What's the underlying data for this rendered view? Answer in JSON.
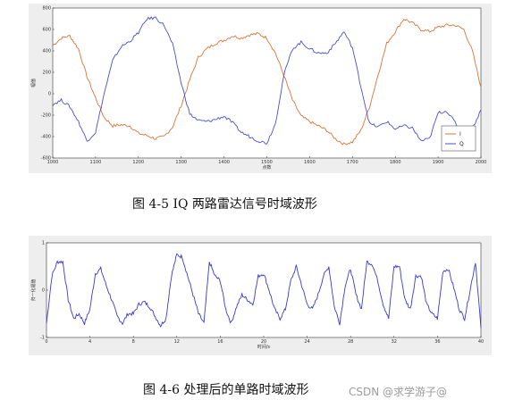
{
  "figure1": {
    "caption": "图 4-5   IQ 两路雷达信号时域波形",
    "chart_data": {
      "type": "line",
      "xlabel": "点数",
      "ylabel": "幅值",
      "xlim": [
        1000,
        2000
      ],
      "ylim": [
        -600,
        800
      ],
      "xticks": [
        "1000",
        "1100",
        "1200",
        "1300",
        "1400",
        "1500",
        "1600",
        "1700",
        "1800",
        "1900",
        "2000"
      ],
      "yticks": [
        "800",
        "600",
        "400",
        "200",
        "0",
        "-200",
        "-400",
        "-600"
      ],
      "grid": false,
      "legend": "bottom-right",
      "series": [
        {
          "name": "I",
          "color": "#d9753a",
          "x": [
            1000,
            1020,
            1040,
            1060,
            1080,
            1100,
            1120,
            1140,
            1160,
            1180,
            1200,
            1220,
            1240,
            1260,
            1280,
            1300,
            1320,
            1340,
            1360,
            1380,
            1400,
            1420,
            1440,
            1460,
            1480,
            1500,
            1520,
            1540,
            1560,
            1580,
            1600,
            1620,
            1640,
            1660,
            1680,
            1700,
            1720,
            1740,
            1760,
            1780,
            1800,
            1820,
            1840,
            1860,
            1880,
            1900,
            1920,
            1940,
            1960,
            1980,
            2000
          ],
          "y": [
            450,
            520,
            540,
            420,
            160,
            -40,
            -220,
            -300,
            -290,
            -300,
            -370,
            -390,
            -420,
            -400,
            -310,
            -110,
            130,
            340,
            420,
            470,
            500,
            540,
            520,
            550,
            560,
            520,
            380,
            170,
            -60,
            -210,
            -260,
            -300,
            -340,
            -420,
            -470,
            -450,
            -340,
            -120,
            180,
            470,
            580,
            700,
            660,
            600,
            580,
            620,
            640,
            640,
            600,
            400,
            60
          ]
        },
        {
          "name": "Q",
          "color": "#4a50c8",
          "x": [
            1000,
            1020,
            1040,
            1060,
            1080,
            1100,
            1120,
            1140,
            1160,
            1180,
            1200,
            1220,
            1240,
            1260,
            1280,
            1300,
            1320,
            1340,
            1360,
            1380,
            1400,
            1420,
            1440,
            1460,
            1480,
            1500,
            1520,
            1540,
            1560,
            1580,
            1600,
            1620,
            1640,
            1660,
            1680,
            1700,
            1720,
            1740,
            1760,
            1780,
            1800,
            1820,
            1840,
            1860,
            1880,
            1900,
            1920,
            1940,
            1960,
            1980,
            2000
          ],
          "y": [
            -100,
            -60,
            -120,
            -260,
            -440,
            -360,
            0,
            310,
            440,
            490,
            570,
            700,
            710,
            640,
            460,
            100,
            -190,
            -250,
            -260,
            -240,
            -210,
            -270,
            -360,
            -400,
            -440,
            -460,
            -280,
            180,
            420,
            480,
            420,
            380,
            380,
            470,
            580,
            430,
            60,
            -280,
            -310,
            -260,
            -330,
            -300,
            -320,
            -440,
            -420,
            -180,
            -160,
            -270,
            -390,
            -330,
            -150
          ]
        }
      ]
    }
  },
  "figure2": {
    "caption": "图 4-6   处理后的单路时域波形",
    "chart_data": {
      "type": "line",
      "xlabel": "时间/s",
      "ylabel": "归一化幅值",
      "xlim": [
        0,
        40
      ],
      "ylim": [
        -1,
        1
      ],
      "xticks": [
        "0",
        "4",
        "8",
        "12",
        "16",
        "20",
        "24",
        "28",
        "32",
        "36",
        "40"
      ],
      "yticks": [
        "1",
        "0",
        "-1"
      ],
      "grid": false,
      "series": [
        {
          "name": "",
          "color": "#3a3ad0",
          "x": [
            0,
            0.5,
            1,
            1.5,
            2,
            2.5,
            3,
            3.5,
            4,
            4.5,
            5,
            5.5,
            6,
            6.5,
            7,
            7.5,
            8,
            8.5,
            9,
            9.5,
            10,
            10.5,
            11,
            11.5,
            12,
            12.5,
            13,
            13.5,
            14,
            14.5,
            15,
            15.5,
            16,
            16.5,
            17,
            17.5,
            18,
            18.5,
            19,
            19.5,
            20,
            20.5,
            21,
            21.5,
            22,
            22.5,
            23,
            23.5,
            24,
            24.5,
            25,
            25.5,
            26,
            26.5,
            27,
            27.5,
            28,
            28.5,
            29,
            29.5,
            30,
            30.5,
            31,
            31.5,
            32,
            32.5,
            33,
            33.5,
            34,
            34.5,
            35,
            35.5,
            36,
            36.5,
            37,
            37.5,
            38,
            38.5,
            39,
            39.5,
            40
          ],
          "y": [
            -0.7,
            0.3,
            0.6,
            0.6,
            -0.2,
            -0.6,
            -0.5,
            -0.7,
            -0.4,
            0.35,
            0.45,
            0.1,
            -0.2,
            -0.55,
            -0.7,
            -0.5,
            -0.5,
            -0.3,
            -0.25,
            -0.35,
            -0.55,
            -0.75,
            -0.6,
            0.3,
            0.75,
            0.7,
            0.3,
            -0.1,
            -0.5,
            -0.7,
            0.6,
            0.3,
            0.2,
            -0.4,
            -0.7,
            -0.35,
            -0.1,
            -0.2,
            -0.3,
            0.3,
            0.35,
            0.0,
            -0.4,
            -0.6,
            -0.4,
            0.2,
            0.5,
            0.1,
            -0.3,
            -0.4,
            -0.1,
            0.3,
            0.5,
            -0.35,
            -0.7,
            0.1,
            0.45,
            -0.1,
            -0.4,
            0.6,
            0.55,
            0.2,
            -0.3,
            -0.6,
            0.5,
            0.5,
            -0.2,
            -0.4,
            0.3,
            0.3,
            -0.3,
            -0.5,
            -0.6,
            0.4,
            0.45,
            0.05,
            -0.4,
            -0.6,
            0.0,
            0.6,
            -0.8
          ]
        }
      ]
    }
  },
  "watermark": "CSDN @求学游子@"
}
